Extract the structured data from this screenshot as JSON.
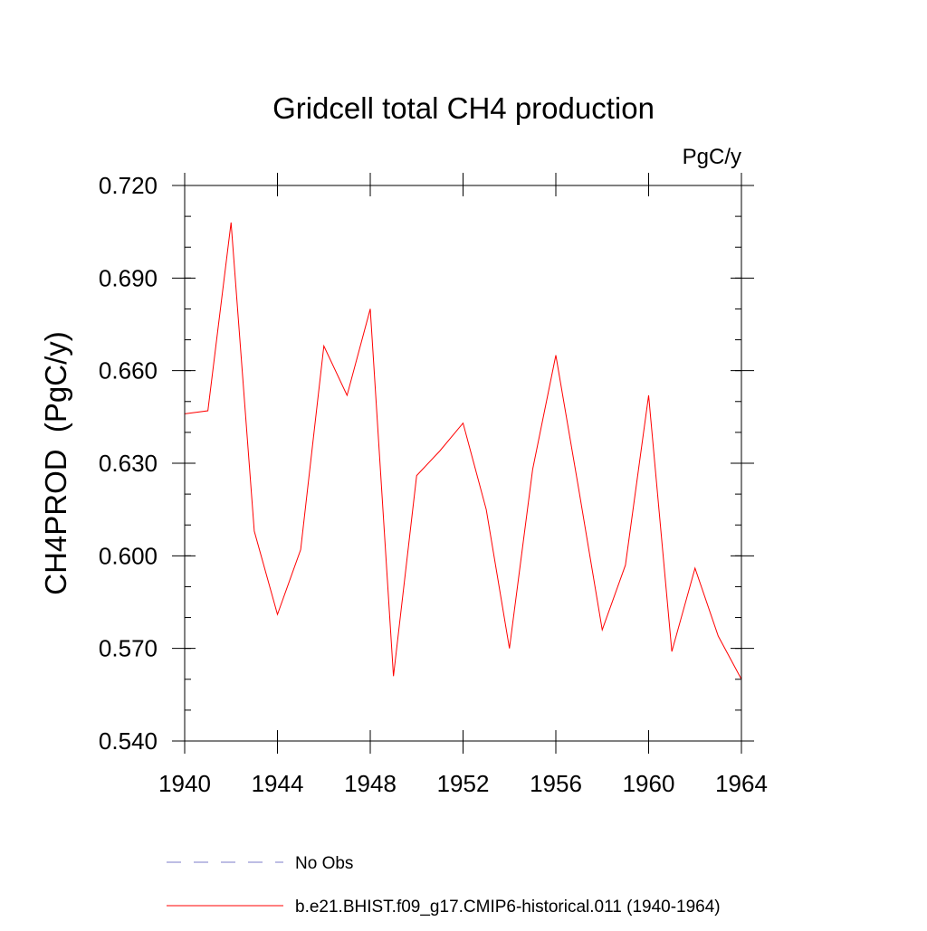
{
  "chart_data": {
    "type": "line",
    "title": "Gridcell total CH4 production",
    "units_label": "PgC/y",
    "xlabel": "",
    "ylabel": "CH4PROD  (PgC/y)",
    "xlim": [
      1940,
      1964
    ],
    "ylim": [
      0.54,
      0.72
    ],
    "x_ticks": [
      1940,
      1944,
      1948,
      1952,
      1956,
      1960,
      1964
    ],
    "x_tick_labels": [
      "1940",
      "1944",
      "1948",
      "1952",
      "1956",
      "1960",
      "1964"
    ],
    "y_ticks": [
      0.54,
      0.57,
      0.6,
      0.63,
      0.66,
      0.69,
      0.72
    ],
    "y_tick_labels": [
      "0.540",
      "0.570",
      "0.600",
      "0.630",
      "0.660",
      "0.690",
      "0.720"
    ],
    "y_minor_step": 0.01,
    "grid": false,
    "legend_position": "bottom",
    "series": [
      {
        "name": "No Obs",
        "color": "#7b7bc8",
        "dashed": true,
        "x": [],
        "y": []
      },
      {
        "name": "b.e21.BHIST.f09_g17.CMIP6-historical.011 (1940-1964)",
        "color": "#ff0000",
        "dashed": false,
        "x": [
          1940,
          1941,
          1942,
          1943,
          1944,
          1945,
          1946,
          1947,
          1948,
          1949,
          1950,
          1951,
          1952,
          1953,
          1954,
          1955,
          1956,
          1957,
          1958,
          1959,
          1960,
          1961,
          1962,
          1963,
          1964
        ],
        "y": [
          0.646,
          0.647,
          0.708,
          0.608,
          0.581,
          0.602,
          0.668,
          0.652,
          0.68,
          0.561,
          0.626,
          0.634,
          0.643,
          0.615,
          0.57,
          0.628,
          0.665,
          0.621,
          0.576,
          0.597,
          0.652,
          0.569,
          0.596,
          0.574,
          0.56
        ]
      }
    ]
  }
}
